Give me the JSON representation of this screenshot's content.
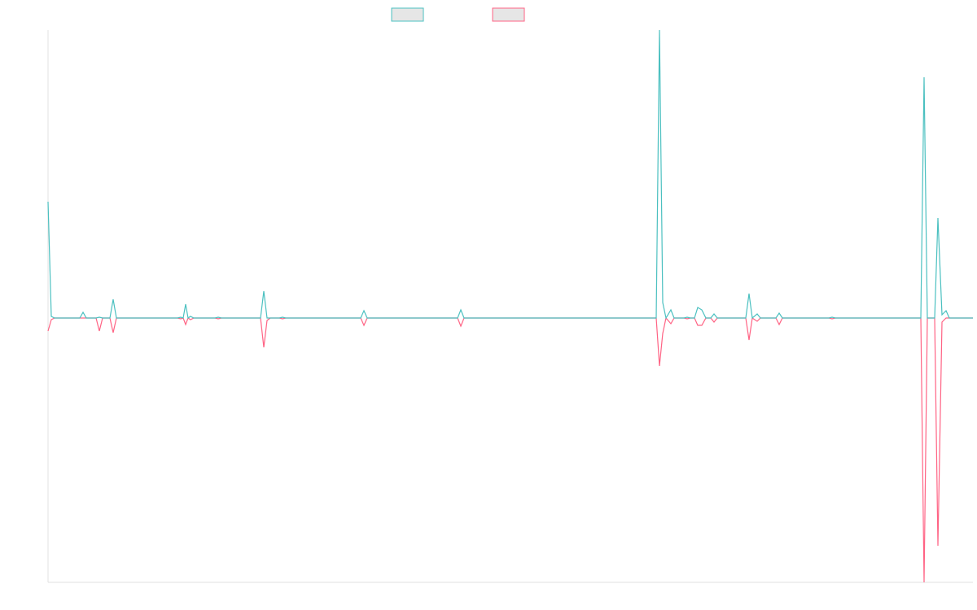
{
  "chart_data": {
    "type": "line",
    "x": [
      0,
      4,
      8,
      39,
      43,
      47,
      59,
      63,
      67,
      76,
      80,
      84,
      159,
      163,
      166,
      169,
      172,
      175,
      179,
      205,
      209,
      213,
      261,
      265,
      269,
      273,
      284,
      288,
      292,
      384,
      388,
      392,
      503,
      507,
      511,
      747,
      751,
      755,
      759,
      765,
      769,
      781,
      785,
      789,
      794,
      798,
      803,
      808,
      814,
      818,
      822,
      857,
      861,
      865,
      871,
      875,
      894,
      898,
      902,
      959,
      963,
      967,
      1072,
      1076,
      1080,
      1089,
      1093,
      1098,
      1103,
      1107,
      1136
    ],
    "series": [
      {
        "color": "#4bc0c0",
        "values": [
          143,
          2,
          0,
          0,
          7,
          0,
          0,
          1,
          0,
          0,
          23,
          0,
          0,
          1,
          0,
          17,
          0,
          2,
          0,
          0,
          1,
          0,
          0,
          33,
          0,
          0,
          0,
          1,
          0,
          0,
          9,
          0,
          0,
          10,
          0,
          0,
          354,
          19,
          0,
          10,
          0,
          0,
          1,
          0,
          0,
          13,
          10,
          0,
          0,
          5,
          0,
          0,
          30,
          0,
          5,
          0,
          0,
          6,
          0,
          0,
          1,
          0,
          0,
          296,
          0,
          0,
          123,
          4,
          9,
          0,
          0
        ]
      },
      {
        "color": "#ff6384",
        "values": [
          -16,
          -2,
          0,
          0,
          0,
          0,
          0,
          -16,
          0,
          0,
          -18,
          0,
          0,
          -1,
          0,
          -8,
          0,
          -2,
          0,
          0,
          -1,
          0,
          0,
          -36,
          -3,
          0,
          0,
          -1,
          0,
          0,
          -9,
          0,
          0,
          -10,
          0,
          0,
          -59,
          -19,
          0,
          -7,
          0,
          0,
          -1,
          0,
          0,
          -9,
          -9,
          0,
          0,
          -5,
          0,
          0,
          -27,
          0,
          -4,
          0,
          0,
          -8,
          0,
          0,
          -1,
          0,
          0,
          -325,
          0,
          0,
          -280,
          -5,
          0,
          0,
          0
        ]
      }
    ],
    "xlim": [
      0,
      1136
    ],
    "ylim": [
      -325,
      354
    ],
    "legend": "top"
  }
}
